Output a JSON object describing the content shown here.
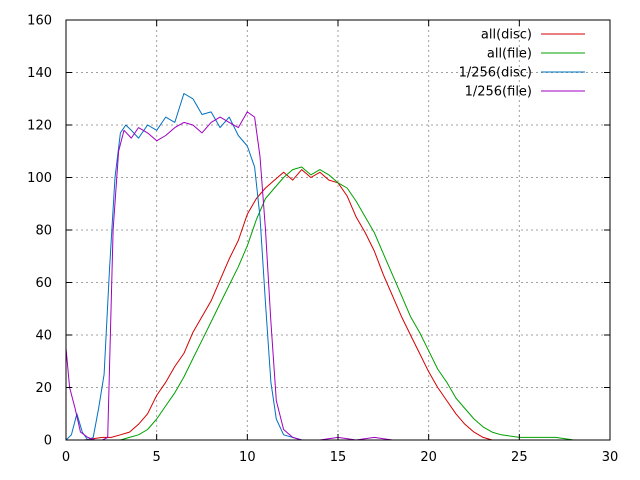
{
  "chart_data": {
    "type": "line",
    "title": "",
    "xlabel": "",
    "ylabel": "",
    "xlim": [
      0,
      30
    ],
    "ylim": [
      0,
      160
    ],
    "xticks": [
      0,
      5,
      10,
      15,
      20,
      25,
      30
    ],
    "yticks": [
      0,
      20,
      40,
      60,
      80,
      100,
      120,
      140,
      160
    ],
    "grid": true,
    "legend_position": "top-right",
    "series": [
      {
        "name": "all(disc)",
        "color": "#d40000",
        "x": [
          0,
          1,
          2,
          2.5,
          3,
          3.5,
          4,
          4.5,
          5,
          5.5,
          6,
          6.5,
          7,
          7.5,
          8,
          8.5,
          9,
          9.5,
          10,
          10.5,
          11,
          11.5,
          12,
          12.5,
          13,
          13.5,
          14,
          14.5,
          15,
          15.5,
          16,
          16.5,
          17,
          17.5,
          18,
          18.5,
          19,
          19.5,
          20,
          20.5,
          21,
          21.5,
          22,
          22.5,
          23,
          23.5,
          24,
          24.5
        ],
        "y": [
          0,
          0,
          1,
          1,
          2,
          3,
          6,
          10,
          17,
          22,
          28,
          33,
          41,
          47,
          53,
          61,
          69,
          76,
          86,
          92,
          96,
          99,
          102,
          99,
          103,
          100,
          102,
          99,
          98,
          93,
          85,
          79,
          72,
          63,
          55,
          47,
          40,
          33,
          26,
          20,
          15,
          10,
          6,
          3,
          1,
          0,
          0,
          0
        ]
      },
      {
        "name": "all(file)",
        "color": "#00a000",
        "x": [
          0,
          3,
          3.5,
          4,
          4.5,
          5,
          5.5,
          6,
          6.5,
          7,
          7.5,
          8,
          8.5,
          9,
          9.5,
          10,
          10.5,
          11,
          11.5,
          12,
          12.5,
          13,
          13.5,
          14,
          14.5,
          15,
          15.5,
          16,
          16.5,
          17,
          17.5,
          18,
          18.5,
          19,
          19.5,
          20,
          20.5,
          21,
          21.5,
          22,
          22.5,
          23,
          23.5,
          24,
          25,
          26,
          27,
          28,
          29,
          30
        ],
        "y": [
          0,
          0,
          1,
          2,
          4,
          8,
          13,
          18,
          24,
          31,
          38,
          45,
          52,
          59,
          66,
          74,
          84,
          92,
          96,
          100,
          103,
          104,
          101,
          103,
          101,
          98,
          96,
          91,
          85,
          79,
          71,
          63,
          55,
          47,
          41,
          34,
          27,
          22,
          16,
          12,
          8,
          5,
          3,
          2,
          1,
          1,
          1,
          0,
          0,
          0
        ]
      },
      {
        "name": "1/256(disc)",
        "color": "#0070c0",
        "x": [
          0,
          0.3,
          0.6,
          0.9,
          1.2,
          1.5,
          1.8,
          2.1,
          2.4,
          2.7,
          3.0,
          3.3,
          3.6,
          4.0,
          4.5,
          5.0,
          5.5,
          6.0,
          6.5,
          7.0,
          7.5,
          8.0,
          8.5,
          9.0,
          9.5,
          10.0,
          10.4,
          10.7,
          11.0,
          11.3,
          11.6,
          12.0,
          12.5,
          13,
          14,
          15,
          16,
          17,
          18,
          19,
          20,
          21
        ],
        "y": [
          0,
          2,
          10,
          3,
          0,
          1,
          12,
          25,
          65,
          100,
          117,
          120,
          118,
          115,
          120,
          118,
          123,
          121,
          132,
          130,
          124,
          125,
          119,
          123,
          116,
          112,
          104,
          85,
          52,
          22,
          8,
          2,
          1,
          0,
          0,
          0,
          0,
          0,
          0,
          0,
          0,
          0
        ]
      },
      {
        "name": "1/256(file)",
        "color": "#a000c0",
        "x": [
          0,
          0.2,
          0.5,
          0.8,
          1.2,
          1.6,
          2.0,
          2.3,
          2.6,
          2.9,
          3.2,
          3.6,
          4.0,
          4.5,
          5.0,
          5.5,
          6.0,
          6.5,
          7.0,
          7.5,
          8.0,
          8.5,
          9.0,
          9.5,
          10.0,
          10.4,
          10.7,
          11.0,
          11.3,
          11.6,
          12.0,
          12.5,
          13,
          14,
          15,
          16,
          17,
          18,
          19
        ],
        "y": [
          35,
          20,
          12,
          3,
          1,
          0,
          0,
          1,
          80,
          110,
          118,
          115,
          119,
          117,
          114,
          116,
          119,
          121,
          120,
          117,
          121,
          123,
          121,
          119,
          125,
          123,
          108,
          80,
          45,
          15,
          4,
          1,
          0,
          0,
          1,
          0,
          1,
          0,
          0
        ]
      }
    ]
  }
}
